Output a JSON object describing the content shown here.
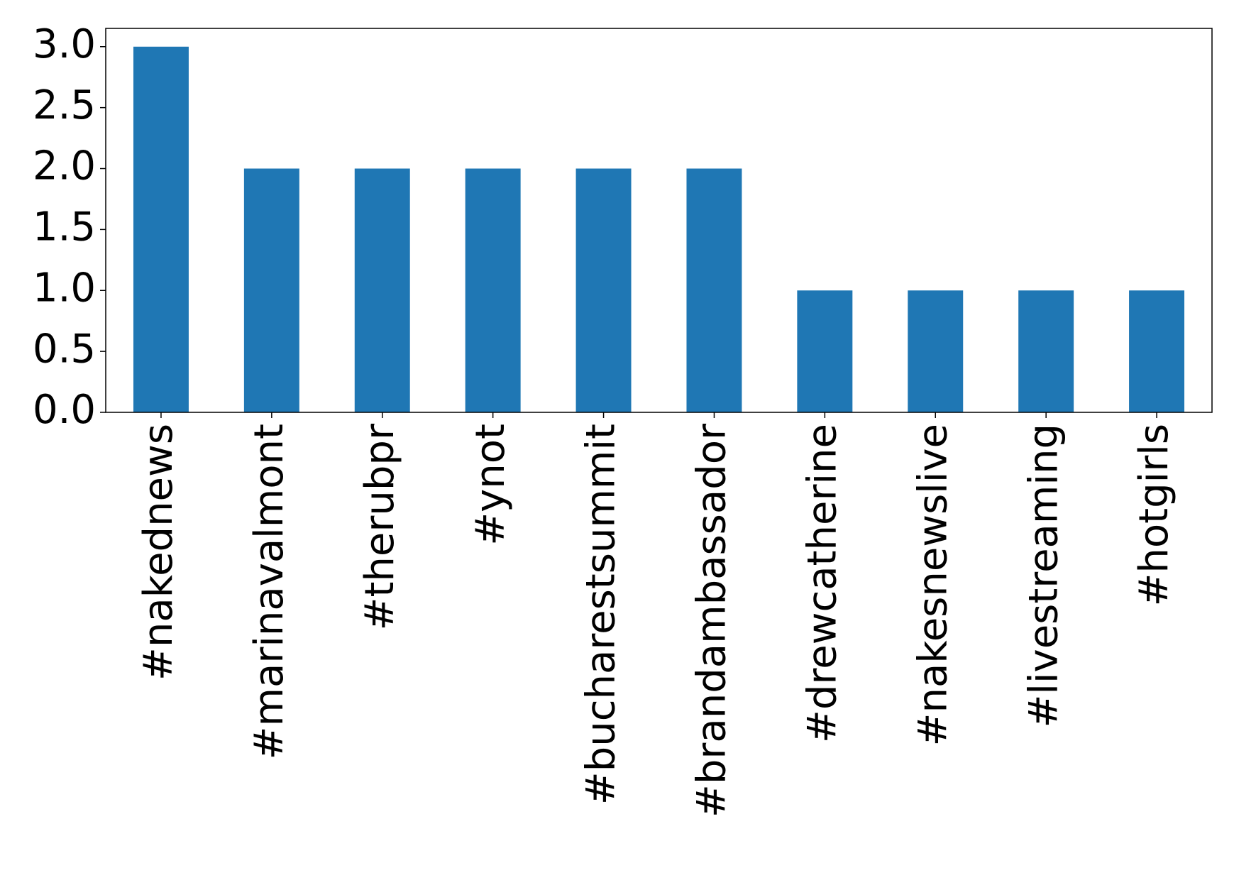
{
  "chart_data": {
    "type": "bar",
    "categories": [
      "#nakednews",
      "#marinavalmont",
      "#therubpr",
      "#ynot",
      "#bucharestsummit",
      "#brandambassador",
      "#drewcatherine",
      "#nakesnewslive",
      "#livestreaming",
      "#hotgirls"
    ],
    "values": [
      3,
      2,
      2,
      2,
      2,
      2,
      1,
      1,
      1,
      1
    ],
    "color": "#1f77b4",
    "ylim": [
      0,
      3.15
    ],
    "yticks": [
      {
        "value": 0,
        "label": "0.0"
      },
      {
        "value": 0.5,
        "label": "0.5"
      },
      {
        "value": 1,
        "label": "1.0"
      },
      {
        "value": 1.5,
        "label": "1.5"
      },
      {
        "value": 2,
        "label": "2.0"
      },
      {
        "value": 2.5,
        "label": "2.5"
      },
      {
        "value": 3,
        "label": "3.0"
      }
    ],
    "grid": false
  }
}
